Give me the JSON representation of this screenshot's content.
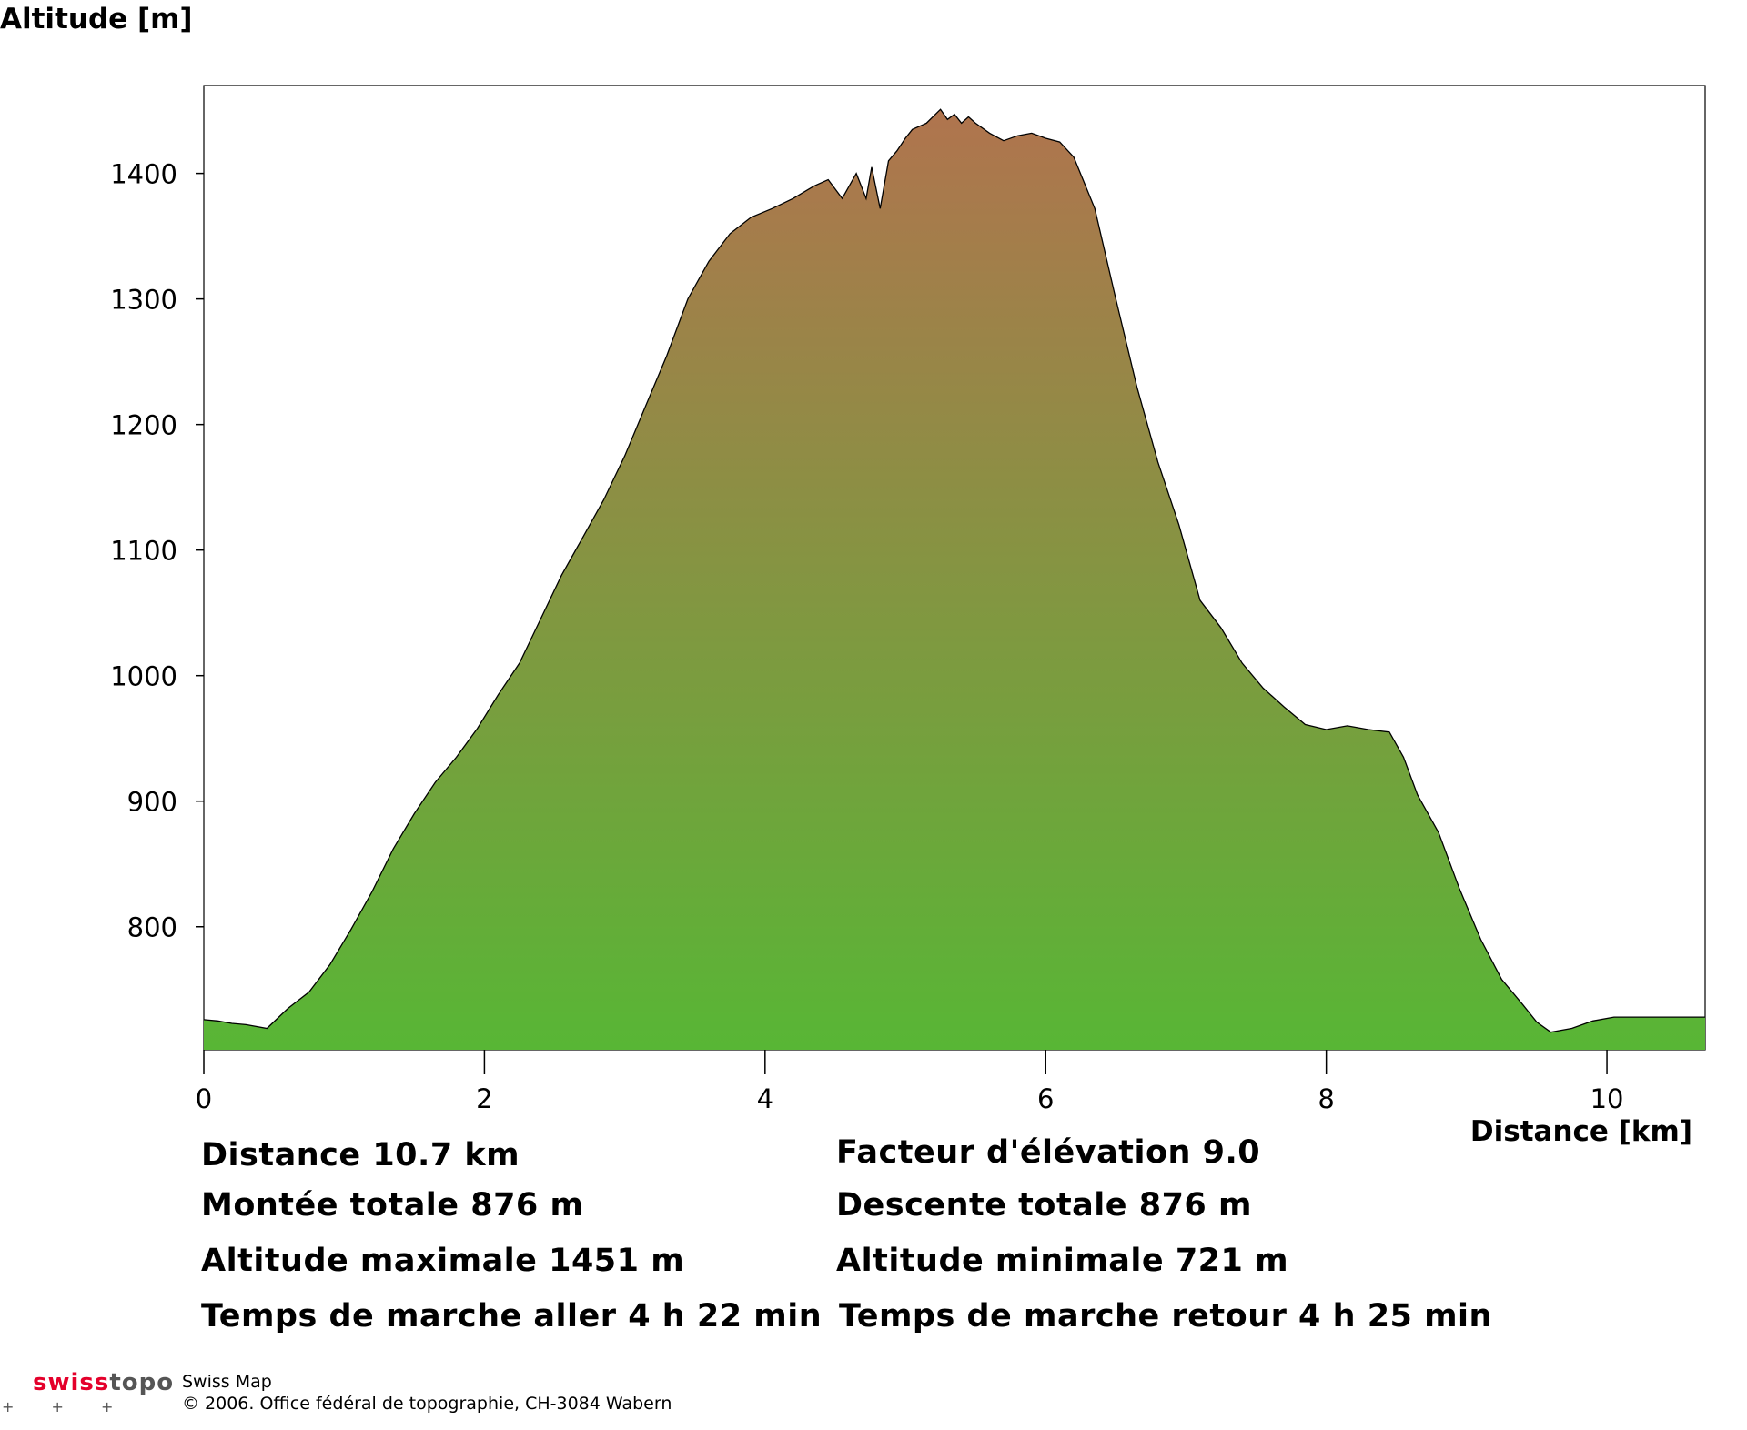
{
  "chart_data": {
    "type": "area",
    "title": "",
    "xlabel": "Distance [km]",
    "ylabel": "Altitude [m]",
    "xlim": [
      0,
      10.7
    ],
    "ylim": [
      702,
      1470
    ],
    "xticks": [
      0,
      2,
      4,
      6,
      8,
      10
    ],
    "yticks": [
      800,
      900,
      1000,
      1100,
      1200,
      1300,
      1400
    ],
    "grid": false,
    "legend": "none",
    "fill_gradient": [
      "#58b635",
      "#b0744e"
    ],
    "line_color": "#000000",
    "series": [
      {
        "x": [
          0,
          0.1,
          0.2,
          0.3,
          0.45,
          0.6,
          0.75,
          0.9,
          1.05,
          1.2,
          1.35,
          1.5,
          1.65,
          1.8,
          1.95,
          2.1,
          2.25,
          2.4,
          2.55,
          2.7,
          2.85,
          3.0,
          3.15,
          3.3,
          3.45,
          3.6,
          3.75,
          3.9,
          4.05,
          4.2,
          4.35,
          4.45,
          4.55,
          4.65,
          4.72,
          4.76,
          4.82,
          4.88,
          4.94,
          5.0,
          5.05,
          5.15,
          5.25,
          5.3,
          5.35,
          5.4,
          5.45,
          5.5,
          5.6,
          5.7,
          5.8,
          5.9,
          6.0,
          6.1,
          6.2,
          6.35,
          6.5,
          6.65,
          6.8,
          6.95,
          7.1,
          7.25,
          7.4,
          7.55,
          7.7,
          7.85,
          8.0,
          8.15,
          8.3,
          8.45,
          8.55,
          8.65,
          8.8,
          8.95,
          9.1,
          9.25,
          9.4,
          9.5,
          9.6,
          9.75,
          9.9,
          10.05,
          10.2,
          10.35,
          10.5,
          10.7
        ],
        "y": [
          726,
          725,
          723,
          722,
          719,
          735,
          748,
          770,
          798,
          828,
          862,
          890,
          915,
          935,
          958,
          985,
          1010,
          1045,
          1080,
          1110,
          1140,
          1175,
          1215,
          1255,
          1300,
          1330,
          1352,
          1365,
          1372,
          1380,
          1390,
          1395,
          1380,
          1400,
          1380,
          1405,
          1372,
          1410,
          1418,
          1428,
          1435,
          1440,
          1451,
          1443,
          1447,
          1440,
          1445,
          1440,
          1432,
          1426,
          1430,
          1432,
          1428,
          1425,
          1413,
          1372,
          1300,
          1230,
          1170,
          1120,
          1060,
          1038,
          1010,
          990,
          975,
          961,
          957,
          960,
          957,
          955,
          935,
          905,
          875,
          830,
          790,
          758,
          738,
          724,
          716,
          719,
          725,
          728,
          728,
          728,
          728,
          728
        ]
      }
    ]
  },
  "stats": {
    "distance": "Distance 10.7 km",
    "elevation_factor": "Facteur d'élévation 9.0",
    "ascent": "Montée totale  876 m",
    "descent": "Descente totale  876 m",
    "alt_max": "Altitude maximale  1451 m",
    "alt_min": "Altitude minimale  721 m",
    "time_out": "Temps de marche aller  4 h 22 min",
    "time_back": "Temps de marche retour  4 h 25 min"
  },
  "footer": {
    "brand_swiss": "swiss",
    "brand_topo": "topo",
    "product": "Swiss Map",
    "copyright": "© 2006. Office fédéral de topographie, CH-3084 Wabern",
    "crosses": "+ + +"
  }
}
